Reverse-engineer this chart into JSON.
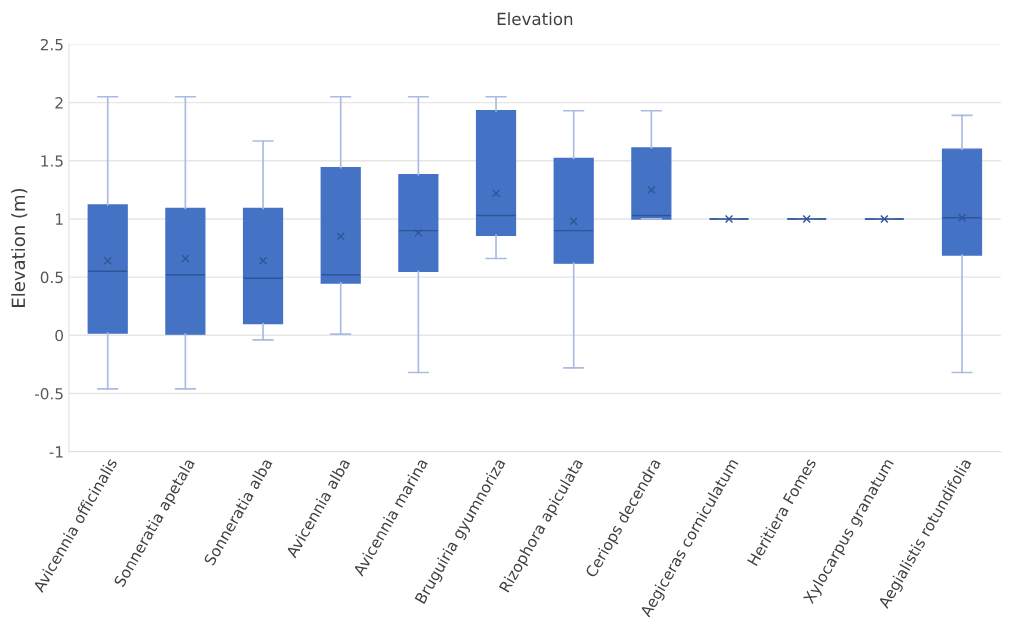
{
  "chart_data": {
    "type": "box",
    "title": "Elevation",
    "ylabel": "Elevation (m)",
    "categories": [
      "Avicennia officinalis",
      "Sonneratia apetala",
      "Sonneratia alba",
      "Avicennia alba",
      "Avicennia marina",
      "Bruguiria gyumnoriza",
      "Rizophora apiculata",
      "Ceriops decendra",
      "Aegiceras corniculatum",
      "Heritiera Fomes",
      "Xylocarpus granatum",
      "Aegialistis rotundifolia"
    ],
    "color": "#4472c4",
    "boxes": [
      {
        "low": -0.46,
        "q1": 0.02,
        "median": 0.55,
        "q3": 1.12,
        "high": 2.05,
        "mean": 0.64
      },
      {
        "low": -0.46,
        "q1": 0.01,
        "median": 0.52,
        "q3": 1.09,
        "high": 2.05,
        "mean": 0.66
      },
      {
        "low": -0.04,
        "q1": 0.1,
        "median": 0.49,
        "q3": 1.09,
        "high": 1.67,
        "mean": 0.64
      },
      {
        "low": 0.01,
        "q1": 0.45,
        "median": 0.52,
        "q3": 1.44,
        "high": 2.05,
        "mean": 0.85
      },
      {
        "low": -0.32,
        "q1": 0.55,
        "median": 0.9,
        "q3": 1.38,
        "high": 2.05,
        "mean": 0.88
      },
      {
        "low": 0.66,
        "q1": 0.86,
        "median": 1.03,
        "q3": 1.93,
        "high": 2.05,
        "mean": 1.22
      },
      {
        "low": -0.28,
        "q1": 0.62,
        "median": 0.9,
        "q3": 1.52,
        "high": 1.93,
        "mean": 0.98
      },
      {
        "low": 1.0,
        "q1": 1.0,
        "median": 1.03,
        "q3": 1.61,
        "high": 1.93,
        "mean": 1.25
      },
      {
        "low": 1.0,
        "q1": 1.0,
        "median": 1.0,
        "q3": 1.0,
        "high": 1.0,
        "mean": 1.0
      },
      {
        "low": 1.0,
        "q1": 1.0,
        "median": 1.0,
        "q3": 1.0,
        "high": 1.0,
        "mean": 1.0
      },
      {
        "low": 1.0,
        "q1": 1.0,
        "median": 1.0,
        "q3": 1.0,
        "high": 1.0,
        "mean": 1.0
      },
      {
        "low": -0.32,
        "q1": 0.69,
        "median": 1.01,
        "q3": 1.6,
        "high": 1.89,
        "mean": 1.01
      }
    ],
    "ylim": [
      -1,
      2.5
    ],
    "yticks": [
      -1,
      -0.5,
      0,
      0.5,
      1,
      1.5,
      2,
      2.5
    ],
    "grid": "y",
    "marker": "cross"
  }
}
